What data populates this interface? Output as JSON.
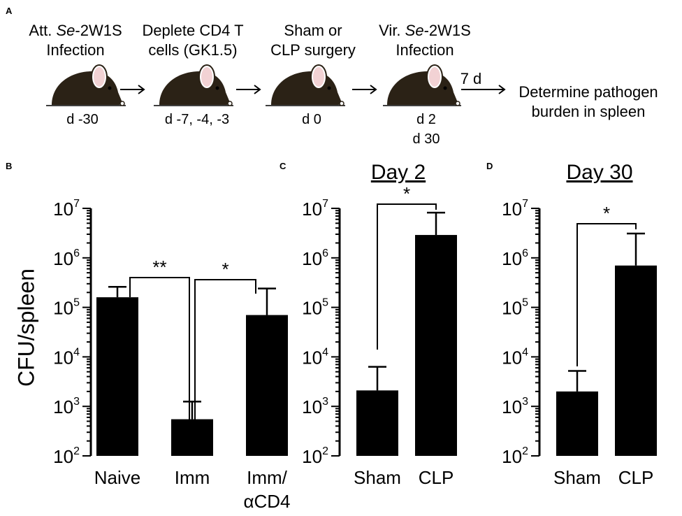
{
  "panels": {
    "a": "A",
    "b": "B",
    "c": "C",
    "d": "D"
  },
  "workflow": {
    "steps": [
      {
        "line1_prefix": "Att. ",
        "line1_ital": "Se",
        "line1_suffix": "-2W1S",
        "line2": "Infection",
        "days": [
          "d -30"
        ]
      },
      {
        "line1_prefix": "Deplete CD4 T",
        "line1_ital": "",
        "line1_suffix": "",
        "line2": "cells (GK1.5)",
        "days": [
          "d -7, -4, -3"
        ]
      },
      {
        "line1_prefix": "Sham or",
        "line1_ital": "",
        "line1_suffix": "",
        "line2": "CLP surgery",
        "days": [
          "d 0"
        ]
      },
      {
        "line1_prefix": "Vir. ",
        "line1_ital": "Se",
        "line1_suffix": "-2W1S",
        "line2": "Infection",
        "days": [
          "d 2",
          "d 30"
        ]
      }
    ],
    "interval_label": "7 d",
    "final_line1": "Determine pathogen",
    "final_line2": "burden in spleen"
  },
  "chart_data": [
    {
      "panel": "B",
      "type": "bar",
      "title": "",
      "ylabel": "CFU/spleen",
      "yscale": "log",
      "ylim": [
        100,
        10000000
      ],
      "yticks": [
        {
          "base": "10",
          "exp": "2"
        },
        {
          "base": "10",
          "exp": "3"
        },
        {
          "base": "10",
          "exp": "4"
        },
        {
          "base": "10",
          "exp": "5"
        },
        {
          "base": "10",
          "exp": "6"
        },
        {
          "base": "10",
          "exp": "7"
        }
      ],
      "categories": [
        "Naive",
        "Imm",
        "Imm/"
      ],
      "category_line2": [
        "",
        "",
        "αCD4"
      ],
      "values": [
        160000,
        550,
        70000
      ],
      "errors_upper": [
        260000,
        1250,
        240000
      ],
      "significance": [
        {
          "from": 0,
          "to": 1,
          "label": "**"
        },
        {
          "from": 1,
          "to": 2,
          "label": "*"
        }
      ]
    },
    {
      "panel": "C",
      "type": "bar",
      "title": "Day 2",
      "ylabel": "",
      "yscale": "log",
      "ylim": [
        100,
        10000000
      ],
      "yticks": [
        {
          "base": "10",
          "exp": "2"
        },
        {
          "base": "10",
          "exp": "3"
        },
        {
          "base": "10",
          "exp": "4"
        },
        {
          "base": "10",
          "exp": "5"
        },
        {
          "base": "10",
          "exp": "6"
        },
        {
          "base": "10",
          "exp": "7"
        }
      ],
      "categories": [
        "Sham",
        "CLP"
      ],
      "category_line2": [
        "",
        ""
      ],
      "values": [
        2100,
        2900000
      ],
      "errors_upper": [
        6300,
        8200000
      ],
      "significance": [
        {
          "from": 0,
          "to": 1,
          "label": "*"
        }
      ]
    },
    {
      "panel": "D",
      "type": "bar",
      "title": "Day 30",
      "ylabel": "",
      "yscale": "log",
      "ylim": [
        100,
        10000000
      ],
      "yticks": [
        {
          "base": "10",
          "exp": "2"
        },
        {
          "base": "10",
          "exp": "3"
        },
        {
          "base": "10",
          "exp": "4"
        },
        {
          "base": "10",
          "exp": "5"
        },
        {
          "base": "10",
          "exp": "6"
        },
        {
          "base": "10",
          "exp": "7"
        }
      ],
      "categories": [
        "Sham",
        "CLP"
      ],
      "category_line2": [
        "",
        ""
      ],
      "values": [
        2000,
        700000
      ],
      "errors_upper": [
        5200,
        3100000
      ],
      "significance": [
        {
          "from": 0,
          "to": 1,
          "label": "*"
        }
      ]
    }
  ]
}
